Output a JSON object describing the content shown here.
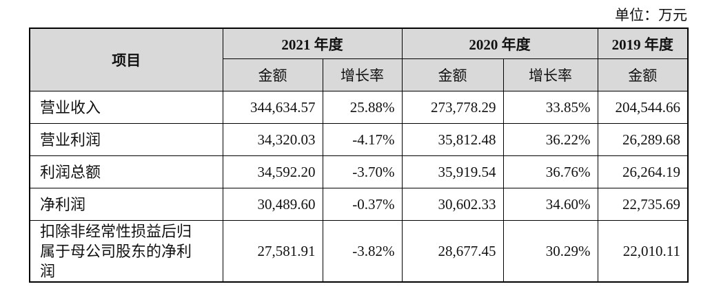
{
  "unit": "单位：万元",
  "table": {
    "header_item": "项目",
    "year_headers": [
      "2021 年度",
      "2020 年度",
      "2019 年度"
    ],
    "sub_headers": [
      "金额",
      "增长率",
      "金额",
      "增长率",
      "金额"
    ],
    "rows": [
      [
        "营业收入",
        "344,634.57",
        "25.88%",
        "273,778.29",
        "33.85%",
        "204,544.66"
      ],
      [
        "营业利润",
        "34,320.03",
        "-4.17%",
        "35,812.48",
        "36.22%",
        "26,289.68"
      ],
      [
        "利润总额",
        "34,592.20",
        "-3.70%",
        "35,919.54",
        "36.76%",
        "26,264.19"
      ],
      [
        "净利润",
        "30,489.60",
        "-0.37%",
        "30,602.33",
        "34.60%",
        "22,735.69"
      ],
      [
        "扣除非经常性损益后归属于母公司股东的净利润",
        "27,581.91",
        "-3.82%",
        "28,677.45",
        "30.29%",
        "22,010.11"
      ]
    ]
  }
}
